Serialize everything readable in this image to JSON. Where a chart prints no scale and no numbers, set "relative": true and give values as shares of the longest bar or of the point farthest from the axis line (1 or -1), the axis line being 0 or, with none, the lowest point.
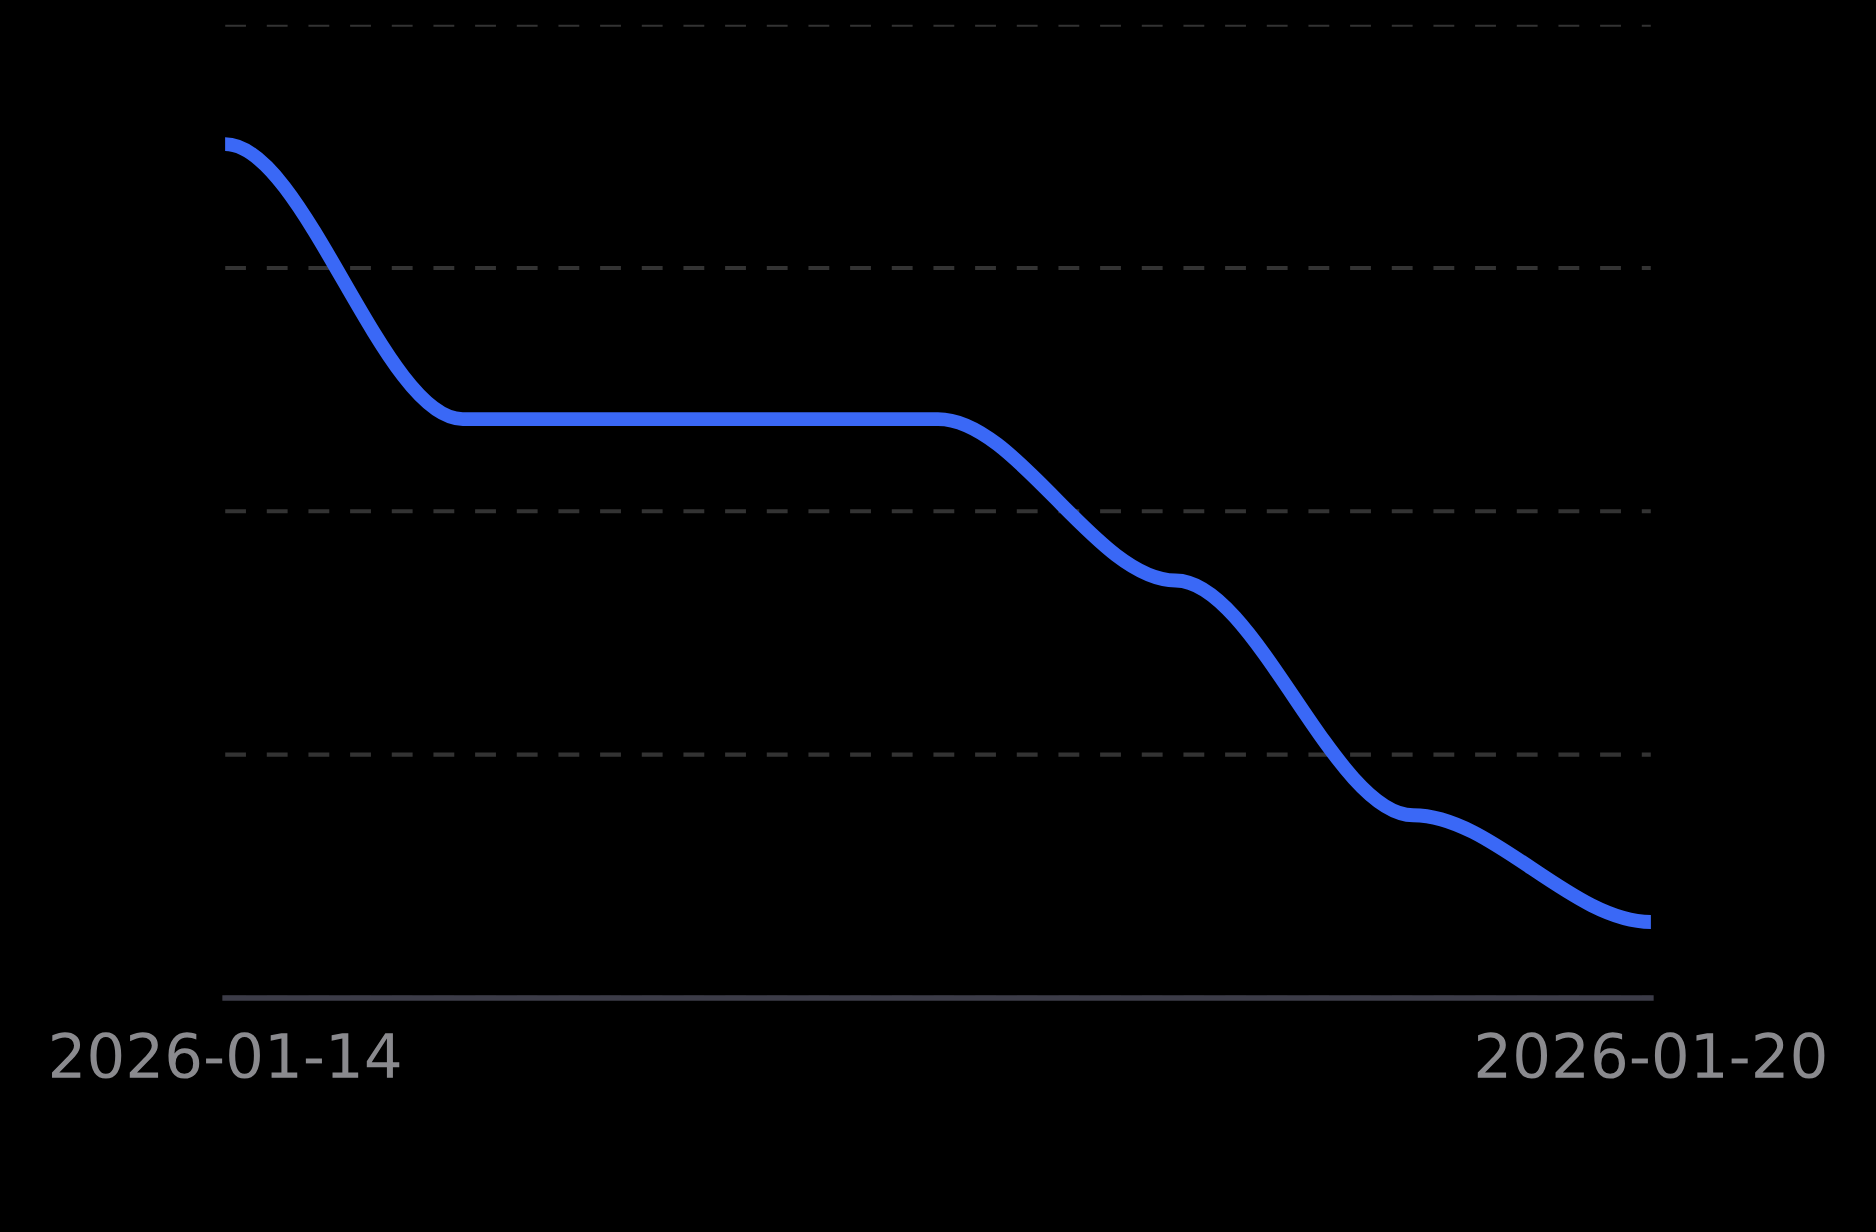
{
  "chart_data": {
    "type": "line",
    "relative": true,
    "x": [
      "2026-01-14",
      "2026-01-15",
      "2026-01-16",
      "2026-01-17",
      "2026-01-18",
      "2026-01-19",
      "2026-01-20"
    ],
    "series": [
      {
        "color": "#3a68f6",
        "values": [
          1,
          0.678,
          0.678,
          0.678,
          0.489,
          0.214,
          0.089
        ]
      }
    ],
    "xlim": [
      "2026-01-14",
      "2026-01-20"
    ],
    "xticks": [
      "2026-01-14",
      "2026-01-20"
    ],
    "grid": "y",
    "line_style": "solid"
  }
}
